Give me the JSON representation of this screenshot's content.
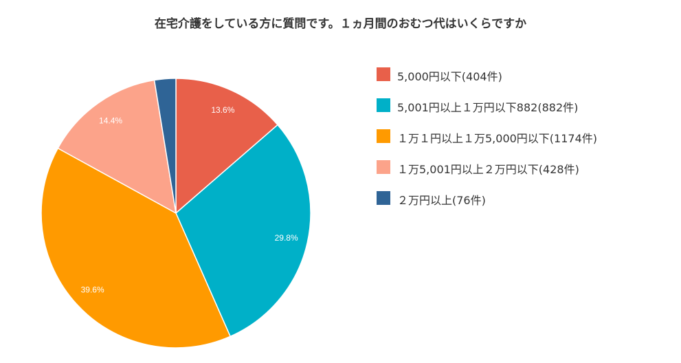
{
  "chart_data": {
    "type": "pie",
    "title": "在宅介護をしている方に質問です。１ヵ月間のおむつ代はいくらですか",
    "categories": [
      "5,000円以下(404件)",
      "5,001円以上１万円以下882(882件)",
      "１万１円以上１万5,000円以下(1174件)",
      "１万5,001円以上２万円以下(428件)",
      "２万円以上(76件)"
    ],
    "values": [
      404,
      882,
      1174,
      428,
      76
    ],
    "data_labels": [
      "13.6%",
      "29.8%",
      "39.6%",
      "14.4%",
      ""
    ],
    "colors": [
      "#E8604A",
      "#00B0C8",
      "#FF9A00",
      "#FCA38A",
      "#2F6496"
    ],
    "legend_position": "right"
  }
}
